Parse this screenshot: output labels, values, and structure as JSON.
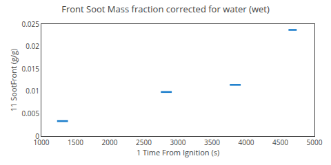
{
  "chart_data": {
    "type": "scatter",
    "marker": "rectangle",
    "title": "Front Soot Mass fraction corrected for water (wet)",
    "xlabel": "1 Time From Ignition (s)",
    "ylabel": "11 SootFront (g/g)",
    "x": [
      1310,
      2830,
      3840,
      4680
    ],
    "values": [
      0.00335,
      0.00985,
      0.01145,
      0.0237
    ],
    "x_half_widths": [
      80,
      80,
      80,
      60
    ],
    "y_half_heights": [
      0.0002,
      0.0002,
      0.0002,
      0.0002
    ],
    "color": "#1e7fcc",
    "xlim": [
      1000,
      5000
    ],
    "xticks": [
      1000,
      1500,
      2000,
      2500,
      3000,
      3500,
      4000,
      4500,
      5000
    ],
    "ylim": [
      0,
      0.025
    ],
    "yticks": [
      0,
      0.005,
      0.01,
      0.015,
      0.02,
      0.025
    ],
    "grid": false
  }
}
